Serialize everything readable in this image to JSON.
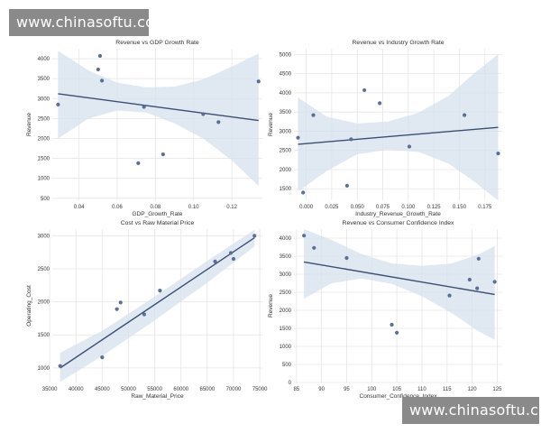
{
  "watermark": {
    "top": "www.chinasoftu.com",
    "bottom": "www.chinasoftu.com"
  },
  "colors": {
    "plot_bg": "#ffffff",
    "grid": "#e6e6e6",
    "point": "#5b6f96",
    "line": "#3b4f75",
    "band": "#d6e0ee",
    "text": "#333333"
  },
  "chart_data": [
    {
      "type": "scatter",
      "title": "Revenue vs GDP Growth Rate",
      "xlabel": "GDP_Growth_Rate",
      "ylabel": "Revenue",
      "xlim": [
        0.026,
        0.136
      ],
      "ylim": [
        450,
        4250
      ],
      "xticks": [
        0.04,
        0.06,
        0.08,
        0.1,
        0.12
      ],
      "xtick_labels": [
        "0.04",
        "0.06",
        "0.08",
        "0.10",
        "0.12"
      ],
      "yticks": [
        500,
        1000,
        1500,
        2000,
        2500,
        3000,
        3500,
        4000
      ],
      "ytick_labels": [
        "500",
        "1000",
        "1500",
        "2000",
        "2500",
        "3000",
        "3500",
        "4000"
      ],
      "points": [
        {
          "x": 0.029,
          "y": 2850
        },
        {
          "x": 0.05,
          "y": 3730
        },
        {
          "x": 0.051,
          "y": 4070
        },
        {
          "x": 0.052,
          "y": 3450
        },
        {
          "x": 0.071,
          "y": 1380
        },
        {
          "x": 0.074,
          "y": 2790
        },
        {
          "x": 0.084,
          "y": 1600
        },
        {
          "x": 0.105,
          "y": 2610
        },
        {
          "x": 0.113,
          "y": 2410
        },
        {
          "x": 0.134,
          "y": 3430
        }
      ],
      "regression": {
        "x": [
          0.029,
          0.134
        ],
        "y": [
          3120,
          2450
        ]
      },
      "band": {
        "x": [
          0.029,
          0.045,
          0.06,
          0.075,
          0.09,
          0.105,
          0.12,
          0.134
        ],
        "upper": [
          4200,
          3700,
          3400,
          3280,
          3300,
          3480,
          3800,
          4130
        ],
        "lower": [
          2000,
          2500,
          2700,
          2650,
          2380,
          2000,
          1450,
          810
        ]
      }
    },
    {
      "type": "scatter",
      "title": "Revenue vs Industry Growth Rate",
      "xlabel": "Industry_Revenue_Growth_Rate",
      "ylabel": "Revenue",
      "xlim": [
        -0.012,
        0.192
      ],
      "ylim": [
        1200,
        5150
      ],
      "xticks": [
        0.0,
        0.025,
        0.05,
        0.075,
        0.1,
        0.125,
        0.15,
        0.175
      ],
      "xtick_labels": [
        "0.000",
        "0.025",
        "0.050",
        "0.075",
        "0.100",
        "0.125",
        "0.150",
        "0.175"
      ],
      "yticks": [
        1500,
        2000,
        2500,
        3000,
        3500,
        4000,
        4500,
        5000
      ],
      "ytick_labels": [
        "1500",
        "2000",
        "2500",
        "3000",
        "3500",
        "4000",
        "4500",
        "5000"
      ],
      "points": [
        {
          "x": -0.008,
          "y": 2830
        },
        {
          "x": -0.003,
          "y": 1400
        },
        {
          "x": 0.007,
          "y": 3420
        },
        {
          "x": 0.04,
          "y": 1580
        },
        {
          "x": 0.044,
          "y": 2790
        },
        {
          "x": 0.057,
          "y": 4070
        },
        {
          "x": 0.072,
          "y": 3730
        },
        {
          "x": 0.101,
          "y": 2600
        },
        {
          "x": 0.155,
          "y": 3420
        },
        {
          "x": 0.188,
          "y": 2420
        }
      ],
      "regression": {
        "x": [
          -0.008,
          0.188
        ],
        "y": [
          2660,
          3100
        ]
      },
      "band": {
        "x": [
          -0.008,
          0.02,
          0.05,
          0.08,
          0.11,
          0.14,
          0.165,
          0.188
        ],
        "upper": [
          3880,
          3380,
          3200,
          3250,
          3480,
          3930,
          4520,
          5000
        ],
        "lower": [
          1430,
          1960,
          2400,
          2520,
          2460,
          2150,
          1680,
          1190
        ]
      }
    },
    {
      "type": "scatter",
      "title": "Cost vs Raw Material Price",
      "xlabel": "Raw_Material_Price",
      "ylabel": "Operating_Cost",
      "xlim": [
        35500,
        75500
      ],
      "ylim": [
        780,
        3100
      ],
      "xticks": [
        35000,
        40000,
        45000,
        50000,
        55000,
        60000,
        65000,
        70000,
        75000
      ],
      "xtick_labels": [
        "35000",
        "40000",
        "45000",
        "50000",
        "55000",
        "60000",
        "65000",
        "70000",
        "75000"
      ],
      "yticks": [
        1000,
        1500,
        2000,
        2500,
        3000
      ],
      "ytick_labels": [
        "1000",
        "1500",
        "2000",
        "2500",
        "3000"
      ],
      "points": [
        {
          "x": 37000,
          "y": 1030
        },
        {
          "x": 45000,
          "y": 1160
        },
        {
          "x": 47800,
          "y": 1890
        },
        {
          "x": 48500,
          "y": 1990
        },
        {
          "x": 53000,
          "y": 1810
        },
        {
          "x": 56000,
          "y": 2170
        },
        {
          "x": 66500,
          "y": 2610
        },
        {
          "x": 69500,
          "y": 2740
        },
        {
          "x": 70000,
          "y": 2650
        },
        {
          "x": 74000,
          "y": 3000
        }
      ],
      "regression": {
        "x": [
          37000,
          74000
        ],
        "y": [
          1000,
          2970
        ]
      },
      "band": {
        "x": [
          37000,
          45000,
          55000,
          65000,
          74000
        ],
        "upper": [
          1230,
          1560,
          2080,
          2620,
          3090
        ],
        "lower": [
          790,
          1180,
          1720,
          2290,
          2840
        ]
      }
    },
    {
      "type": "scatter",
      "title": "Revenue vs Consumer Confidence Index",
      "xlabel": "Consumer_Confidence_Index",
      "ylabel": "Revenue",
      "xlim": [
        84.5,
        126
      ],
      "ylim": [
        0,
        4250
      ],
      "xticks": [
        85,
        90,
        95,
        100,
        105,
        110,
        115,
        120,
        125
      ],
      "xtick_labels": [
        "85",
        "90",
        "95",
        "100",
        "105",
        "110",
        "115",
        "120",
        "125"
      ],
      "yticks": [
        0,
        500,
        1000,
        1500,
        2000,
        2500,
        3000,
        3500,
        4000
      ],
      "ytick_labels": [
        "0",
        "500",
        "1000",
        "1500",
        "2000",
        "2500",
        "3000",
        "3500",
        "4000"
      ],
      "points": [
        {
          "x": 86.5,
          "y": 4070
        },
        {
          "x": 88.5,
          "y": 3730
        },
        {
          "x": 95,
          "y": 3450
        },
        {
          "x": 104,
          "y": 1600
        },
        {
          "x": 105,
          "y": 1380
        },
        {
          "x": 115.5,
          "y": 2410
        },
        {
          "x": 119.5,
          "y": 2850
        },
        {
          "x": 121,
          "y": 2610
        },
        {
          "x": 121.3,
          "y": 3430
        },
        {
          "x": 124.5,
          "y": 2790
        }
      ],
      "regression": {
        "x": [
          86.5,
          124.5
        ],
        "y": [
          3340,
          2440
        ]
      },
      "band": {
        "x": [
          86.5,
          92,
          98,
          104,
          110,
          116,
          121,
          124.5
        ],
        "upper": [
          4250,
          3950,
          3560,
          3300,
          3230,
          3300,
          3530,
          3780
        ],
        "lower": [
          2320,
          2750,
          2880,
          2730,
          2390,
          1920,
          1440,
          1180
        ]
      }
    }
  ]
}
